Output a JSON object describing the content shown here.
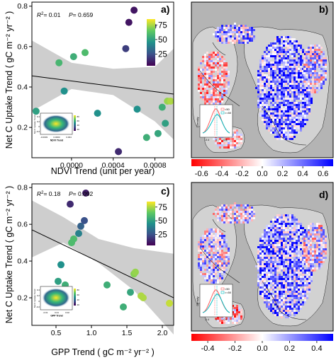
{
  "chart_data": [
    {
      "type": "scatter",
      "panel_label": "a)",
      "stats": {
        "r2": "= 0.01",
        "p": "= 0.659"
      },
      "xlabel": "NDVI Trend (unit per year)",
      "ylabel": "Net C Uptake Trend ( gC m⁻² yr⁻² )",
      "xlim": [
        -0.00038,
        0.00098
      ],
      "ylim": [
        0.05,
        0.82
      ],
      "x_ticks": [
        0,
        0.0004,
        0.0008
      ],
      "x_tick_labels": [
        "0.0000",
        "0.0004",
        "0.0008"
      ],
      "y_ticks": [
        0.2,
        0.4,
        0.6,
        0.8
      ],
      "y_tick_labels": [
        "0.2",
        "0.4",
        "0.6",
        "0.8"
      ],
      "x": [
        -0.00034,
        -0.00012,
        -7e-05,
        2e-05,
        0.00013,
        0.00025,
        0.00045,
        0.00052,
        0.00055,
        0.0006,
        0.00063,
        0.00072,
        0.00078,
        0.00083,
        0.00087,
        0.0009,
        0.00092,
        0.00095
      ],
      "y": [
        0.28,
        0.52,
        0.38,
        0.55,
        0.57,
        0.27,
        0.08,
        0.59,
        0.72,
        0.78,
        0.29,
        0.15,
        0.7,
        0.17,
        0.3,
        0.22,
        0.33,
        0.33
      ],
      "color_value": [
        50,
        58,
        45,
        55,
        60,
        45,
        15,
        20,
        10,
        10,
        45,
        55,
        18,
        52,
        55,
        50,
        72,
        75
      ],
      "fit_line": {
        "x": [
          -0.00038,
          0.00098
        ],
        "y": [
          0.455,
          0.365
        ]
      },
      "ci_band": {
        "x": [
          -0.00038,
          0.0,
          0.0004,
          0.0008,
          0.00098
        ],
        "lower": [
          0.28,
          0.39,
          0.36,
          0.23,
          0.14
        ],
        "upper": [
          0.63,
          0.52,
          0.49,
          0.5,
          0.59
        ]
      },
      "colorbar": {
        "min": 5,
        "max": 85,
        "ticks": [
          25,
          50,
          75
        ],
        "tick_labels": [
          "25",
          "50",
          "75"
        ]
      },
      "inset": {
        "x_tick_labels": [
          "-0.0003",
          "0.0003",
          "0.004"
        ],
        "xlabel": "NDVI Trend",
        "ylabel": "Net C Uptake Trend",
        "y_tick_labels": [
          "0.4",
          "0.2",
          "0",
          "-0.2"
        ],
        "legend_tick_labels": [
          "80",
          "60",
          "40",
          "20"
        ]
      }
    },
    {
      "type": "heatmap",
      "panel_label": "b)",
      "colorbar": {
        "min": -0.7,
        "max": 0.7,
        "ticks": [
          -0.6,
          -0.4,
          -0.2,
          0.0,
          0.2,
          0.4,
          0.6
        ],
        "tick_labels": [
          "-0.6",
          "-0.4",
          "-0.2",
          "0.0",
          "0.2",
          "0.4",
          "0.6"
        ]
      },
      "inset": {
        "ylabel": "Density",
        "legend": [
          "<50",
          ">=50"
        ],
        "x_tick_labels": [
          "-0.4",
          "0",
          "0.4"
        ]
      }
    },
    {
      "type": "scatter",
      "panel_label": "c)",
      "stats": {
        "r2": "= 0.18",
        "p": "= 0.092"
      },
      "xlabel": "GPP Trend ( gC m⁻² yr⁻² )",
      "ylabel": "Net C Uptake Trend ( gC m⁻² yr⁻² )",
      "xlim": [
        0.16,
        2.16
      ],
      "ylim": [
        0.05,
        0.82
      ],
      "x_ticks": [
        0.5,
        1.0,
        1.5,
        2.0
      ],
      "x_tick_labels": [
        "0.5",
        "1.0",
        "1.5",
        "2.0"
      ],
      "y_ticks": [
        0.2,
        0.4,
        0.6,
        0.8
      ],
      "y_tick_labels": [
        "0.2",
        "0.4",
        "0.6",
        "0.8"
      ],
      "x": [
        0.53,
        0.57,
        0.63,
        0.7,
        0.72,
        0.75,
        0.82,
        0.85,
        0.9,
        0.92,
        1.22,
        1.45,
        1.55,
        1.6,
        1.62,
        1.7,
        1.73,
        2.1
      ],
      "y": [
        0.29,
        0.38,
        0.27,
        0.71,
        0.5,
        0.52,
        0.55,
        0.59,
        0.62,
        0.77,
        0.27,
        0.15,
        0.23,
        0.33,
        0.34,
        0.21,
        0.2,
        0.17
      ],
      "color_value": [
        50,
        45,
        55,
        15,
        60,
        60,
        40,
        30,
        25,
        12,
        55,
        55,
        52,
        70,
        72,
        75,
        75,
        78
      ],
      "fit_line": {
        "x": [
          0.16,
          2.16
        ],
        "y": [
          0.57,
          0.2
        ]
      },
      "ci_band": {
        "x": [
          0.16,
          0.6,
          1.1,
          1.6,
          2.16
        ],
        "lower": [
          0.42,
          0.5,
          0.39,
          0.24,
          0.0
        ],
        "upper": [
          0.73,
          0.64,
          0.52,
          0.47,
          0.44
        ]
      },
      "colorbar": {
        "min": 5,
        "max": 85,
        "ticks": [
          25,
          50,
          75
        ],
        "tick_labels": [
          "25",
          "50",
          "75"
        ]
      },
      "inset": {
        "x_tick_labels": [
          "-0.01",
          "0.01",
          "0.02"
        ],
        "xlabel": "GPP Trend",
        "ylabel": "Net C Uptake Trend",
        "y_tick_labels": [
          "0.4",
          "0.2",
          "0",
          "-0.2"
        ],
        "legend_tick_labels": [
          "80",
          "60",
          "40",
          "20"
        ]
      }
    },
    {
      "type": "heatmap",
      "panel_label": "d)",
      "colorbar": {
        "min": -0.52,
        "max": 0.52,
        "ticks": [
          -0.4,
          -0.2,
          0.0,
          0.2,
          0.4
        ],
        "tick_labels": [
          "-0.4",
          "-0.2",
          "0.0",
          "0.2",
          "0.4"
        ]
      },
      "inset": {
        "ylabel": "Density",
        "legend": [
          "<50",
          ">=50"
        ],
        "x_tick_labels": [
          "-0.4",
          "0",
          "0.4"
        ]
      }
    }
  ]
}
